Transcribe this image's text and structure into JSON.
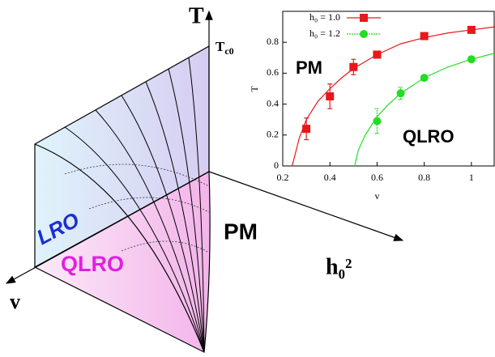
{
  "chart_data": {
    "type": "scatter",
    "xlabel": "v",
    "ylabel": "T",
    "xlim": [
      0.2,
      1.1
    ],
    "ylim": [
      0,
      1
    ],
    "xticks": [
      0.2,
      0.4,
      0.6,
      0.8,
      1
    ],
    "yticks": [
      0,
      0.2,
      0.4,
      0.6,
      0.8
    ],
    "legend": "top-left",
    "annotations": [
      "PM",
      "QLRO"
    ],
    "series": [
      {
        "name": "h₀ = 1.0",
        "color": "#e8181a",
        "marker": "square",
        "x": [
          0.3,
          0.4,
          0.5,
          0.6,
          0.8,
          1
        ],
        "values": [
          0.24,
          0.45,
          0.64,
          0.72,
          0.84,
          0.88
        ],
        "errors": [
          0.07,
          0.08,
          0.05,
          0.02,
          null,
          null
        ],
        "fit_x": [
          0.24,
          0.27,
          0.3,
          0.35,
          0.4,
          0.45,
          0.5,
          0.6,
          0.7,
          0.8,
          0.9,
          1,
          1.1
        ],
        "fit_y": [
          0,
          0.18,
          0.3,
          0.42,
          0.5,
          0.57,
          0.63,
          0.72,
          0.79,
          0.83,
          0.86,
          0.88,
          0.9
        ]
      },
      {
        "name": "h₀ = 1.2",
        "color": "#22dd22",
        "marker": "circle",
        "x": [
          0.6,
          0.7,
          0.8,
          1
        ],
        "values": [
          0.29,
          0.47,
          0.57,
          0.69
        ],
        "errors": [
          0.08,
          0.04,
          null,
          null
        ],
        "fit_x": [
          0.505,
          0.52,
          0.55,
          0.6,
          0.65,
          0.7,
          0.8,
          0.9,
          1,
          1.1
        ],
        "fit_y": [
          0,
          0.1,
          0.2,
          0.32,
          0.4,
          0.47,
          0.57,
          0.64,
          0.69,
          0.73
        ]
      }
    ]
  },
  "diagram": {
    "t_axis": "T",
    "tc0": {
      "base": "T",
      "sub": "c0"
    },
    "v_axis": "v",
    "h_axis": "h₀²",
    "lro": "LRO",
    "qlro": "QLRO",
    "pm": "PM"
  }
}
